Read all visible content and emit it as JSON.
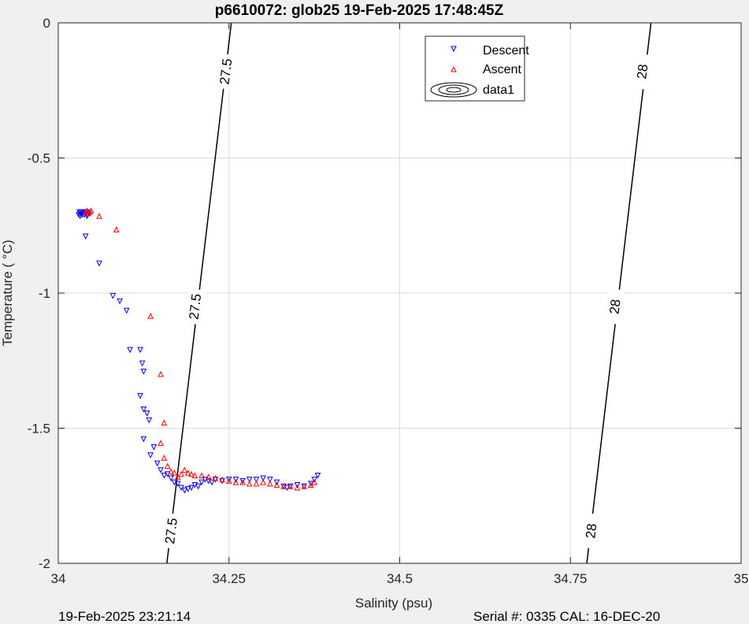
{
  "window": {
    "footer_left": "19-Feb-2025 23:21:14",
    "footer_right": "Serial #: 0335  CAL: 16-DEC-20"
  },
  "chart_data": {
    "type": "scatter",
    "title": "p6610072: glob25 19-Feb-2025 17:48:45Z",
    "xlabel": "Salinity (psu)",
    "ylabel": "Temperature (   °C)",
    "xlim": [
      34,
      35
    ],
    "ylim": [
      -2,
      0
    ],
    "xticks": [
      34,
      34.25,
      34.5,
      34.75,
      35
    ],
    "xtick_labels": [
      "34",
      "34.25",
      "34.5",
      "34.75",
      "35"
    ],
    "yticks": [
      -2,
      -1.5,
      -1,
      -0.5,
      0
    ],
    "ytick_labels": [
      "-2",
      "-1.5",
      "-1",
      "-0.5",
      "0"
    ],
    "grid": true,
    "legend_position": "top-right",
    "legend": [
      "Descent",
      "Ascent",
      "data1"
    ],
    "colors": {
      "descent": "#0000ff",
      "ascent": "#ff0000",
      "contour": "#000000",
      "grid": "#dcdcdc"
    },
    "series": [
      {
        "name": "Descent",
        "marker": "triangle-down",
        "points": [
          [
            34.03,
            -0.71
          ],
          [
            34.031,
            -0.7
          ],
          [
            34.032,
            -0.715
          ],
          [
            34.033,
            -0.705
          ],
          [
            34.034,
            -0.7
          ],
          [
            34.035,
            -0.71
          ],
          [
            34.036,
            -0.705
          ],
          [
            34.037,
            -0.7
          ],
          [
            34.038,
            -0.71
          ],
          [
            34.04,
            -0.705
          ],
          [
            34.041,
            -0.7
          ],
          [
            34.042,
            -0.715
          ],
          [
            34.043,
            -0.71
          ],
          [
            34.045,
            -0.705
          ],
          [
            34.04,
            -0.79
          ],
          [
            34.06,
            -0.89
          ],
          [
            34.08,
            -1.01
          ],
          [
            34.09,
            -1.03
          ],
          [
            34.1,
            -1.065
          ],
          [
            34.105,
            -1.21
          ],
          [
            34.12,
            -1.21
          ],
          [
            34.123,
            -1.26
          ],
          [
            34.125,
            -1.29
          ],
          [
            34.12,
            -1.38
          ],
          [
            34.125,
            -1.43
          ],
          [
            34.13,
            -1.445
          ],
          [
            34.133,
            -1.47
          ],
          [
            34.125,
            -1.54
          ],
          [
            34.14,
            -1.57
          ],
          [
            34.135,
            -1.6
          ],
          [
            34.145,
            -1.63
          ],
          [
            34.15,
            -1.655
          ],
          [
            34.155,
            -1.675
          ],
          [
            34.16,
            -1.67
          ],
          [
            34.165,
            -1.685
          ],
          [
            34.17,
            -1.7
          ],
          [
            34.175,
            -1.705
          ],
          [
            34.18,
            -1.72
          ],
          [
            34.185,
            -1.73
          ],
          [
            34.19,
            -1.725
          ],
          [
            34.195,
            -1.72
          ],
          [
            34.2,
            -1.71
          ],
          [
            34.205,
            -1.715
          ],
          [
            34.21,
            -1.7
          ],
          [
            34.215,
            -1.69
          ],
          [
            34.22,
            -1.695
          ],
          [
            34.225,
            -1.7
          ],
          [
            34.23,
            -1.69
          ],
          [
            34.24,
            -1.695
          ],
          [
            34.25,
            -1.69
          ],
          [
            34.26,
            -1.69
          ],
          [
            34.27,
            -1.695
          ],
          [
            34.28,
            -1.69
          ],
          [
            34.29,
            -1.69
          ],
          [
            34.3,
            -1.685
          ],
          [
            34.31,
            -1.69
          ],
          [
            34.32,
            -1.7
          ],
          [
            34.33,
            -1.715
          ],
          [
            34.335,
            -1.72
          ],
          [
            34.34,
            -1.715
          ],
          [
            34.35,
            -1.71
          ],
          [
            34.36,
            -1.715
          ],
          [
            34.37,
            -1.705
          ],
          [
            34.375,
            -1.69
          ],
          [
            34.38,
            -1.675
          ]
        ]
      },
      {
        "name": "Ascent",
        "marker": "triangle-up",
        "points": [
          [
            34.04,
            -0.7
          ],
          [
            34.042,
            -0.695
          ],
          [
            34.044,
            -0.705
          ],
          [
            34.046,
            -0.7
          ],
          [
            34.048,
            -0.695
          ],
          [
            34.06,
            -0.715
          ],
          [
            34.085,
            -0.765
          ],
          [
            34.135,
            -1.085
          ],
          [
            34.15,
            -1.3
          ],
          [
            34.155,
            -1.48
          ],
          [
            34.15,
            -1.555
          ],
          [
            34.155,
            -1.61
          ],
          [
            34.16,
            -1.64
          ],
          [
            34.165,
            -1.66
          ],
          [
            34.17,
            -1.665
          ],
          [
            34.175,
            -1.68
          ],
          [
            34.18,
            -1.67
          ],
          [
            34.185,
            -1.655
          ],
          [
            34.19,
            -1.665
          ],
          [
            34.195,
            -1.67
          ],
          [
            34.2,
            -1.675
          ],
          [
            34.21,
            -1.675
          ],
          [
            34.22,
            -1.68
          ],
          [
            34.23,
            -1.685
          ],
          [
            34.24,
            -1.69
          ],
          [
            34.25,
            -1.695
          ],
          [
            34.26,
            -1.7
          ],
          [
            34.27,
            -1.7
          ],
          [
            34.28,
            -1.705
          ],
          [
            34.29,
            -1.705
          ],
          [
            34.3,
            -1.7
          ],
          [
            34.31,
            -1.705
          ],
          [
            34.32,
            -1.71
          ],
          [
            34.33,
            -1.715
          ],
          [
            34.34,
            -1.715
          ],
          [
            34.35,
            -1.72
          ],
          [
            34.36,
            -1.715
          ],
          [
            34.37,
            -1.71
          ],
          [
            34.375,
            -1.7
          ]
        ]
      }
    ],
    "contours": [
      {
        "level": "27.5",
        "points": [
          [
            34.159,
            -2
          ],
          [
            34.2534,
            0
          ]
        ],
        "labels": [
          [
            34.165,
            -1.88
          ],
          [
            34.2,
            -1.05
          ],
          [
            34.245,
            -0.18
          ]
        ]
      },
      {
        "level": "28",
        "points": [
          [
            34.774,
            -2
          ],
          [
            34.868,
            0
          ]
        ],
        "labels": [
          [
            34.78,
            -1.88
          ],
          [
            34.815,
            -1.05
          ],
          [
            34.855,
            -0.18
          ]
        ]
      }
    ]
  }
}
